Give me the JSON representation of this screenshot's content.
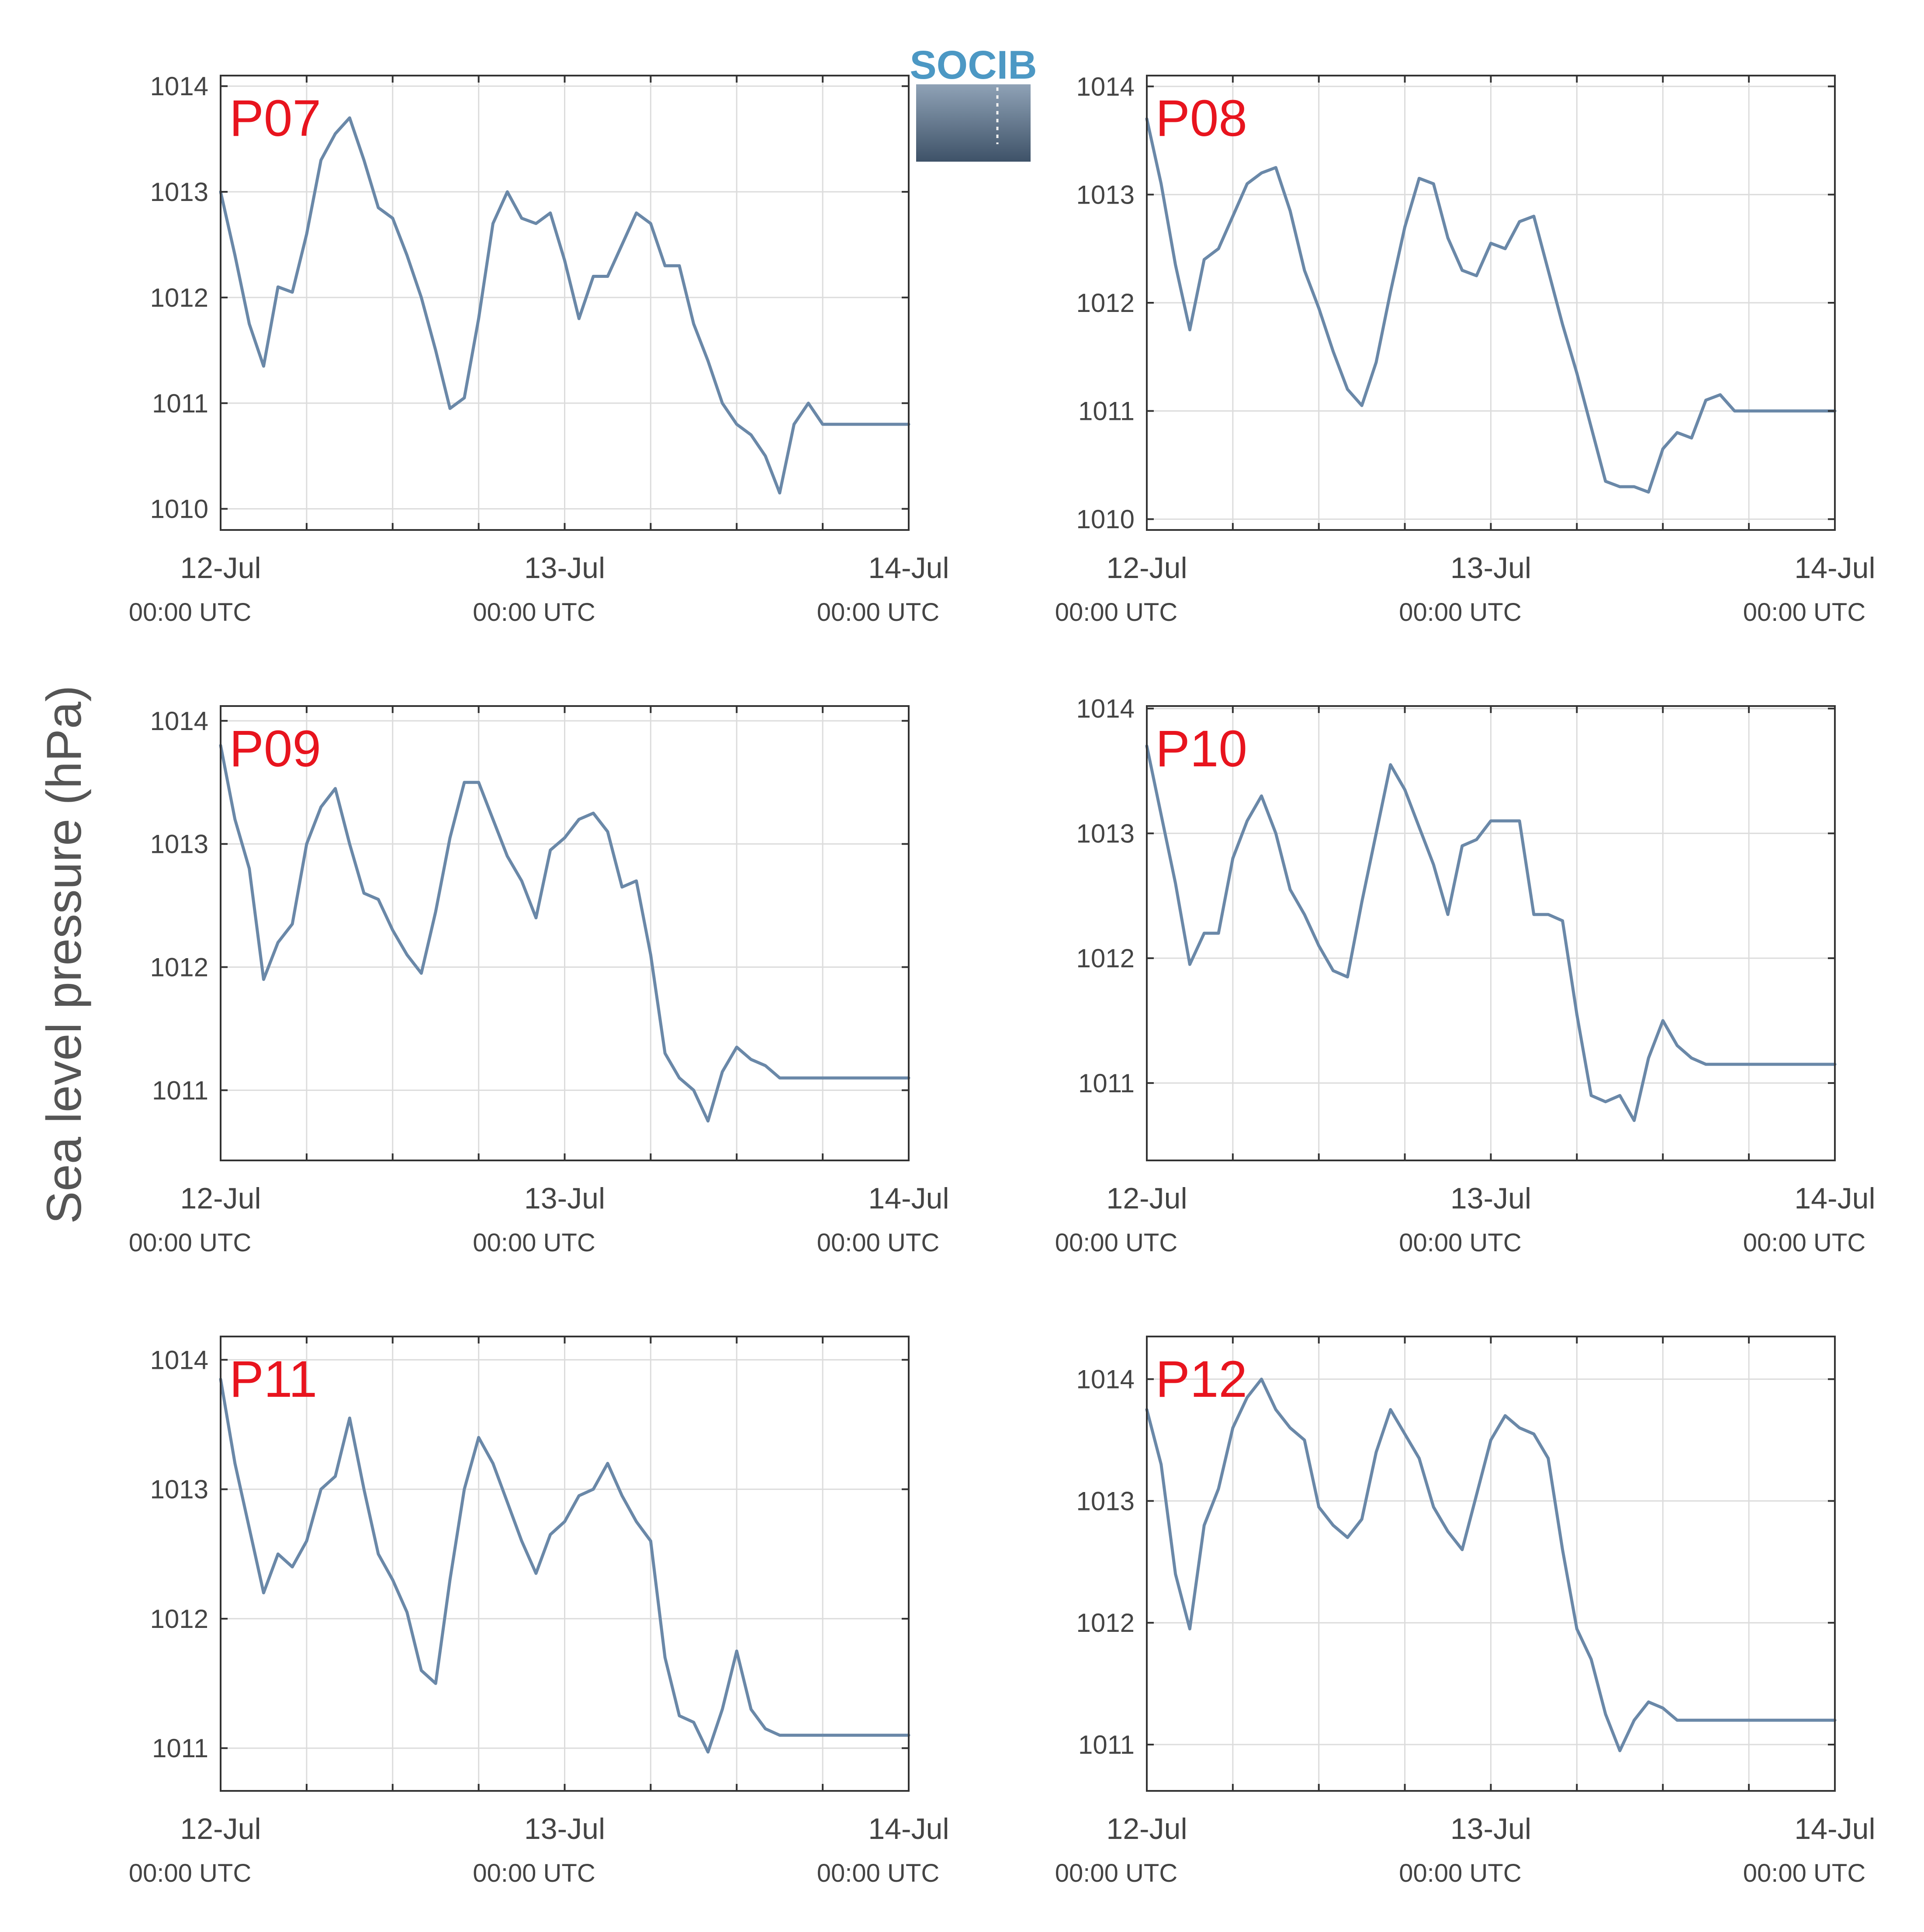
{
  "figure": {
    "ylabel": "Sea level pressure (hPa)",
    "logo_text": "SOCIB",
    "line_color": "#6a88a8",
    "label_color": "#e8141e",
    "grid_color": "#dcdcdc",
    "axis_color": "#333333"
  },
  "chart_data": [
    {
      "type": "line",
      "title": "P07",
      "xticks": [
        {
          "date": "12-Jul",
          "time": "00:00 UTC"
        },
        {
          "date": "13-Jul",
          "time": "00:00 UTC"
        },
        {
          "date": "14-Jul",
          "time": "00:00 UTC"
        }
      ],
      "xlim": [
        "12-Jul 00:00",
        "14-Jul 00:00"
      ],
      "ylim": [
        1009.8,
        1014.1
      ],
      "yticks": [
        1010,
        1011,
        1012,
        1013,
        1014
      ],
      "grid": true,
      "x_hours": [
        0,
        1,
        2,
        3,
        4,
        5,
        6,
        7,
        8,
        9,
        10,
        11,
        12,
        13,
        14,
        15,
        16,
        17,
        18,
        19,
        20,
        21,
        22,
        23,
        24,
        25,
        26,
        27,
        28,
        29,
        30,
        31,
        32,
        33,
        34,
        35,
        36,
        37,
        38,
        39,
        40,
        41,
        42,
        43,
        44,
        45,
        46,
        47,
        48
      ],
      "values": [
        1013.0,
        1012.4,
        1011.75,
        1011.35,
        1012.1,
        1012.05,
        1012.6,
        1013.3,
        1013.55,
        1013.7,
        1013.3,
        1012.85,
        1012.75,
        1012.4,
        1012.0,
        1011.5,
        1010.95,
        1011.05,
        1011.8,
        1012.7,
        1013.0,
        1012.75,
        1012.7,
        1012.8,
        1012.35,
        1011.8,
        1012.2,
        1012.2,
        1012.5,
        1012.8,
        1012.7,
        1012.3,
        1012.3,
        1011.75,
        1011.4,
        1011.0,
        1010.8,
        1010.7,
        1010.5,
        1010.15,
        1010.8,
        1011.0,
        1010.8,
        1010.8,
        1010.8,
        1010.8,
        1010.8,
        1010.8,
        1010.8
      ]
    },
    {
      "type": "line",
      "title": "P08",
      "xticks": [
        {
          "date": "12-Jul",
          "time": "00:00 UTC"
        },
        {
          "date": "13-Jul",
          "time": "00:00 UTC"
        },
        {
          "date": "14-Jul",
          "time": "00:00 UTC"
        }
      ],
      "xlim": [
        "12-Jul 00:00",
        "14-Jul 00:00"
      ],
      "ylim": [
        1009.9,
        1014.1
      ],
      "yticks": [
        1010,
        1011,
        1012,
        1013,
        1014
      ],
      "grid": true,
      "x_hours": [
        0,
        1,
        2,
        3,
        4,
        5,
        6,
        7,
        8,
        9,
        10,
        11,
        12,
        13,
        14,
        15,
        16,
        17,
        18,
        19,
        20,
        21,
        22,
        23,
        24,
        25,
        26,
        27,
        28,
        29,
        30,
        31,
        32,
        33,
        34,
        35,
        36,
        37,
        38,
        39,
        40,
        41,
        42,
        43,
        44,
        45,
        46,
        47,
        48
      ],
      "values": [
        1013.7,
        1013.1,
        1012.35,
        1011.75,
        1012.4,
        1012.5,
        1012.8,
        1013.1,
        1013.2,
        1013.25,
        1012.85,
        1012.3,
        1011.95,
        1011.55,
        1011.2,
        1011.05,
        1011.45,
        1012.1,
        1012.7,
        1013.15,
        1013.1,
        1012.6,
        1012.3,
        1012.25,
        1012.55,
        1012.5,
        1012.75,
        1012.8,
        1012.3,
        1011.8,
        1011.35,
        1010.85,
        1010.35,
        1010.3,
        1010.3,
        1010.25,
        1010.65,
        1010.8,
        1010.75,
        1011.1,
        1011.15,
        1011.0,
        1011.0,
        1011.0,
        1011.0,
        1011.0,
        1011.0,
        1011.0,
        1011.0
      ]
    },
    {
      "type": "line",
      "title": "P09",
      "xticks": [
        {
          "date": "12-Jul",
          "time": "00:00 UTC"
        },
        {
          "date": "13-Jul",
          "time": "00:00 UTC"
        },
        {
          "date": "14-Jul",
          "time": "00:00 UTC"
        }
      ],
      "xlim": [
        "12-Jul 00:00",
        "14-Jul 00:00"
      ],
      "ylim": [
        1010.43,
        1014.12
      ],
      "yticks": [
        1011,
        1012,
        1013,
        1014
      ],
      "grid": true,
      "x_hours": [
        0,
        1,
        2,
        3,
        4,
        5,
        6,
        7,
        8,
        9,
        10,
        11,
        12,
        13,
        14,
        15,
        16,
        17,
        18,
        19,
        20,
        21,
        22,
        23,
        24,
        25,
        26,
        27,
        28,
        29,
        30,
        31,
        32,
        33,
        34,
        35,
        36,
        37,
        38,
        39,
        40,
        41,
        42,
        43,
        44,
        45,
        46,
        47,
        48
      ],
      "values": [
        1013.8,
        1013.2,
        1012.8,
        1011.9,
        1012.2,
        1012.35,
        1013.0,
        1013.3,
        1013.45,
        1013.0,
        1012.6,
        1012.55,
        1012.3,
        1012.1,
        1011.95,
        1012.45,
        1013.05,
        1013.5,
        1013.5,
        1013.2,
        1012.9,
        1012.7,
        1012.4,
        1012.95,
        1013.05,
        1013.2,
        1013.25,
        1013.1,
        1012.65,
        1012.7,
        1012.1,
        1011.3,
        1011.1,
        1011.0,
        1010.75,
        1011.15,
        1011.35,
        1011.25,
        1011.2,
        1011.1,
        1011.1,
        1011.1,
        1011.1,
        1011.1,
        1011.1,
        1011.1,
        1011.1,
        1011.1,
        1011.1
      ]
    },
    {
      "type": "line",
      "title": "P10",
      "xticks": [
        {
          "date": "12-Jul",
          "time": "00:00 UTC"
        },
        {
          "date": "13-Jul",
          "time": "00:00 UTC"
        },
        {
          "date": "14-Jul",
          "time": "00:00 UTC"
        }
      ],
      "xlim": [
        "12-Jul 00:00",
        "14-Jul 00:00"
      ],
      "ylim": [
        1010.38,
        1014.02
      ],
      "yticks": [
        1011,
        1012,
        1013,
        1014
      ],
      "grid": true,
      "x_hours": [
        0,
        1,
        2,
        3,
        4,
        5,
        6,
        7,
        8,
        9,
        10,
        11,
        12,
        13,
        14,
        15,
        16,
        17,
        18,
        19,
        20,
        21,
        22,
        23,
        24,
        25,
        26,
        27,
        28,
        29,
        30,
        31,
        32,
        33,
        34,
        35,
        36,
        37,
        38,
        39,
        40,
        41,
        42,
        43,
        44,
        45,
        46,
        47,
        48
      ],
      "values": [
        1013.7,
        1013.15,
        1012.6,
        1011.95,
        1012.2,
        1012.2,
        1012.8,
        1013.1,
        1013.3,
        1013.0,
        1012.55,
        1012.35,
        1012.1,
        1011.9,
        1011.85,
        1012.45,
        1013.0,
        1013.55,
        1013.35,
        1013.05,
        1012.75,
        1012.35,
        1012.9,
        1012.95,
        1013.1,
        1013.1,
        1013.1,
        1012.35,
        1012.35,
        1012.3,
        1011.55,
        1010.9,
        1010.85,
        1010.9,
        1010.7,
        1011.2,
        1011.5,
        1011.3,
        1011.2,
        1011.15,
        1011.15,
        1011.15,
        1011.15,
        1011.15,
        1011.15,
        1011.15,
        1011.15,
        1011.15,
        1011.15
      ]
    },
    {
      "type": "line",
      "title": "P11",
      "xticks": [
        {
          "date": "12-Jul",
          "time": "00:00 UTC"
        },
        {
          "date": "13-Jul",
          "time": "00:00 UTC"
        },
        {
          "date": "14-Jul",
          "time": "00:00 UTC"
        }
      ],
      "xlim": [
        "12-Jul 00:00",
        "14-Jul 00:00"
      ],
      "ylim": [
        1010.67,
        1014.18
      ],
      "yticks": [
        1011,
        1012,
        1013,
        1014
      ],
      "grid": true,
      "x_hours": [
        0,
        1,
        2,
        3,
        4,
        5,
        6,
        7,
        8,
        9,
        10,
        11,
        12,
        13,
        14,
        15,
        16,
        17,
        18,
        19,
        20,
        21,
        22,
        23,
        24,
        25,
        26,
        27,
        28,
        29,
        30,
        31,
        32,
        33,
        34,
        35,
        36,
        37,
        38,
        39,
        40,
        41,
        42,
        43,
        44,
        45,
        46,
        47,
        48
      ],
      "values": [
        1013.85,
        1013.2,
        1012.7,
        1012.2,
        1012.5,
        1012.4,
        1012.6,
        1013.0,
        1013.1,
        1013.55,
        1013.0,
        1012.5,
        1012.3,
        1012.05,
        1011.6,
        1011.5,
        1012.3,
        1013.0,
        1013.4,
        1013.2,
        1012.9,
        1012.6,
        1012.35,
        1012.65,
        1012.75,
        1012.95,
        1013.0,
        1013.2,
        1012.95,
        1012.75,
        1012.6,
        1011.7,
        1011.25,
        1011.2,
        1010.97,
        1011.3,
        1011.75,
        1011.3,
        1011.15,
        1011.1,
        1011.1,
        1011.1,
        1011.1,
        1011.1,
        1011.1,
        1011.1,
        1011.1,
        1011.1,
        1011.1
      ]
    },
    {
      "type": "line",
      "title": "P12",
      "xticks": [
        {
          "date": "12-Jul",
          "time": "00:00 UTC"
        },
        {
          "date": "13-Jul",
          "time": "00:00 UTC"
        },
        {
          "date": "14-Jul",
          "time": "00:00 UTC"
        }
      ],
      "xlim": [
        "12-Jul 00:00",
        "14-Jul 00:00"
      ],
      "ylim": [
        1010.62,
        1014.35
      ],
      "yticks": [
        1011,
        1012,
        1013,
        1014
      ],
      "grid": true,
      "x_hours": [
        0,
        1,
        2,
        3,
        4,
        5,
        6,
        7,
        8,
        9,
        10,
        11,
        12,
        13,
        14,
        15,
        16,
        17,
        18,
        19,
        20,
        21,
        22,
        23,
        24,
        25,
        26,
        27,
        28,
        29,
        30,
        31,
        32,
        33,
        34,
        35,
        36,
        37,
        38,
        39,
        40,
        41,
        42,
        43,
        44,
        45,
        46,
        47,
        48
      ],
      "values": [
        1013.75,
        1013.3,
        1012.4,
        1011.95,
        1012.8,
        1013.1,
        1013.6,
        1013.85,
        1014.0,
        1013.75,
        1013.6,
        1013.5,
        1012.95,
        1012.8,
        1012.7,
        1012.85,
        1013.4,
        1013.75,
        1013.55,
        1013.35,
        1012.95,
        1012.75,
        1012.6,
        1013.05,
        1013.5,
        1013.7,
        1013.6,
        1013.55,
        1013.35,
        1012.6,
        1011.95,
        1011.7,
        1011.25,
        1010.95,
        1011.2,
        1011.35,
        1011.3,
        1011.2,
        1011.2,
        1011.2,
        1011.2,
        1011.2,
        1011.2,
        1011.2,
        1011.2,
        1011.2,
        1011.2,
        1011.2,
        1011.2
      ]
    }
  ]
}
